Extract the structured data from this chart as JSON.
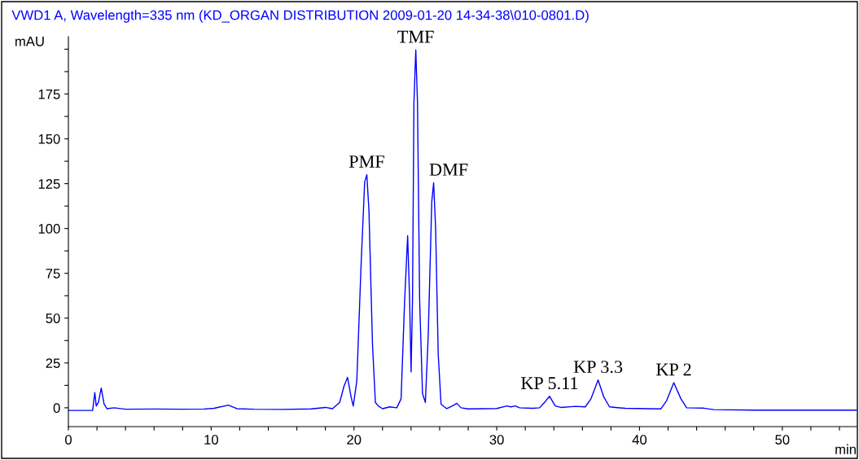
{
  "chart_data": {
    "type": "line",
    "title": "VWD1 A, Wavelength=335 nm (KD_ORGAN DISTRIBUTION 2009-01-20 14-34-38\\010-0801.D)",
    "xlabel": "min",
    "ylabel": "mAU",
    "x": [
      0,
      1.7,
      1.85,
      1.95,
      2.1,
      2.3,
      2.5,
      2.7,
      3.2,
      4,
      6,
      8,
      9.5,
      10.2,
      11.2,
      11.8,
      13,
      15,
      17,
      18,
      18.5,
      19,
      19.3,
      19.55,
      19.8,
      19.95,
      20.2,
      20.5,
      20.75,
      20.9,
      21.05,
      21.3,
      21.5,
      21.7,
      22,
      22.5,
      23,
      23.3,
      23.55,
      23.76,
      23.9,
      24.0,
      24.1,
      24.2,
      24.33,
      24.45,
      24.6,
      24.8,
      25.0,
      25.2,
      25.45,
      25.58,
      25.72,
      25.9,
      26.1,
      26.5,
      27,
      27.2,
      27.5,
      28,
      30,
      30.7,
      31,
      31.3,
      31.6,
      32.5,
      33,
      33.4,
      33.7,
      34.1,
      34.5,
      35.5,
      36.2,
      36.6,
      37.1,
      37.5,
      37.9,
      39,
      41.5,
      41.9,
      42.4,
      42.9,
      43.3,
      44.5,
      45.2,
      48,
      55.2
    ],
    "series": [
      {
        "color": "#0000ff",
        "values": [
          -1.5,
          -1.5,
          8.5,
          1,
          3,
          11,
          2,
          -0.5,
          0,
          -0.8,
          -0.7,
          -0.8,
          -0.7,
          -0.3,
          1.5,
          -0.5,
          -0.8,
          -0.9,
          -0.6,
          0.2,
          -0.5,
          3,
          12,
          17,
          6,
          1,
          15,
          80,
          126,
          130,
          110,
          35,
          3,
          1,
          -0.5,
          0.5,
          0,
          5,
          60,
          96,
          60,
          20,
          60,
          170,
          199.6,
          170,
          60,
          8,
          3,
          40,
          115,
          125.5,
          100,
          30,
          2,
          -0.5,
          1.5,
          2.5,
          0,
          -0.6,
          -0.4,
          1,
          0.5,
          1,
          0,
          -0.3,
          0,
          3.5,
          6.4,
          1,
          0.2,
          0.8,
          0.5,
          5,
          15.5,
          6,
          0.5,
          -0.3,
          -0.6,
          4,
          14,
          5,
          0,
          -0.2,
          -1,
          -1.3,
          -1.3
        ]
      }
    ],
    "annotations": [
      {
        "text": "PMF",
        "x": 20.9,
        "y": 130
      },
      {
        "text": "TMF",
        "x": 24.33,
        "y": 199.6
      },
      {
        "text": "DMF",
        "x": 25.58,
        "y": 125.5
      },
      {
        "text": "KP 5.11",
        "x": 33.7,
        "y": 6.4
      },
      {
        "text": "KP 3.3",
        "x": 37.1,
        "y": 15.5
      },
      {
        "text": "KP 2",
        "x": 42.4,
        "y": 14
      }
    ],
    "xlim": [
      0,
      55.2
    ],
    "ylim": [
      -10.5,
      207
    ],
    "xticks": [
      0,
      {
        "value": 2,
        "label": null
      },
      {
        "value": 4,
        "label": null
      },
      {
        "value": 6,
        "label": null
      },
      {
        "value": 8,
        "label": null
      },
      10,
      {
        "value": 12,
        "label": null
      },
      {
        "value": 14,
        "label": null
      },
      {
        "value": 16,
        "label": null
      },
      {
        "value": 18,
        "label": null
      },
      20,
      {
        "value": 22,
        "label": null
      },
      {
        "value": 24,
        "label": null
      },
      {
        "value": 26,
        "label": null
      },
      {
        "value": 28,
        "label": null
      },
      30,
      {
        "value": 32,
        "label": null
      },
      {
        "value": 34,
        "label": null
      },
      {
        "value": 36,
        "label": null
      },
      {
        "value": 38,
        "label": null
      },
      40,
      {
        "value": 42,
        "label": null
      },
      {
        "value": 44,
        "label": null
      },
      {
        "value": 46,
        "label": null
      },
      {
        "value": 48,
        "label": null
      },
      50,
      {
        "value": 52,
        "label": null
      },
      {
        "value": 54,
        "label": null
      }
    ],
    "yticks": [
      0,
      {
        "value": 12.5,
        "label": null
      },
      25,
      {
        "value": 37.5,
        "label": null
      },
      50,
      {
        "value": 62.5,
        "label": null
      },
      75,
      {
        "value": 87.5,
        "label": null
      },
      100,
      {
        "value": 112.5,
        "label": null
      },
      125,
      {
        "value": 137.5,
        "label": null
      },
      150,
      {
        "value": 162.5,
        "label": null
      },
      175,
      {
        "value": 187.5,
        "label": null
      },
      {
        "value": 200,
        "label": null
      }
    ],
    "grid": false,
    "legend": false,
    "marker": "none",
    "line_style": "solid"
  }
}
